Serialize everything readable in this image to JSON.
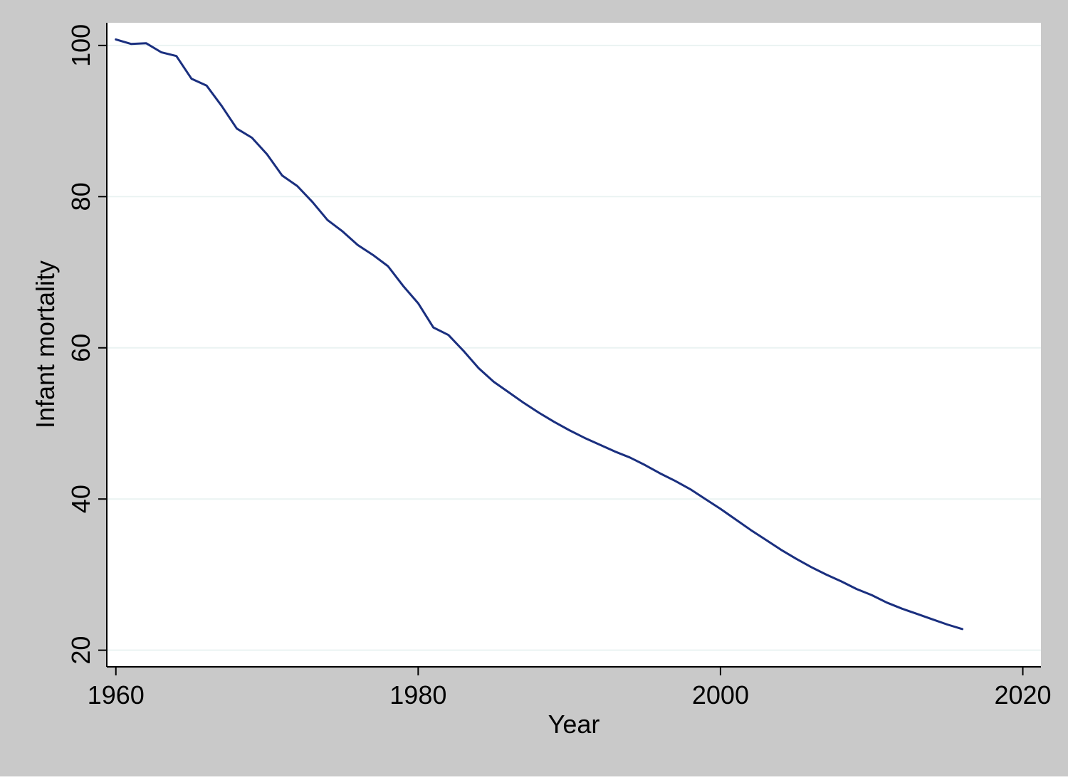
{
  "chart_data": {
    "type": "line",
    "title": "",
    "xlabel": "Year",
    "ylabel": "Infant mortality",
    "xlim": [
      1959.4,
      2021.2
    ],
    "ylim": [
      17.8,
      103.0
    ],
    "x_ticks": [
      1960,
      1980,
      2000,
      2020
    ],
    "y_ticks": [
      20,
      40,
      60,
      80,
      100
    ],
    "x_tick_labels": [
      "1960",
      "1980",
      "2000",
      "2020"
    ],
    "y_tick_labels": [
      "20",
      "40",
      "60",
      "80",
      "100"
    ],
    "grid": true,
    "legend": "none",
    "series": [
      {
        "x": [
          1960,
          1961,
          1962,
          1963,
          1964,
          1965,
          1966,
          1967,
          1968,
          1969,
          1970,
          1971,
          1972,
          1973,
          1974,
          1975,
          1976,
          1977,
          1978,
          1979,
          1980,
          1981,
          1982,
          1983,
          1984,
          1985,
          1986,
          1987,
          1988,
          1989,
          1990,
          1991,
          1992,
          1993,
          1994,
          1995,
          1996,
          1997,
          1998,
          1999,
          2000,
          2001,
          2002,
          2003,
          2004,
          2005,
          2006,
          2007,
          2008,
          2009,
          2010,
          2011,
          2012,
          2013,
          2014,
          2015,
          2016
        ],
        "values": [
          100.8,
          100.2,
          100.3,
          99.1,
          98.6,
          95.6,
          94.7,
          92.0,
          89.0,
          87.8,
          85.6,
          82.8,
          81.4,
          79.3,
          76.9,
          75.4,
          73.6,
          72.3,
          70.8,
          68.2,
          65.9,
          62.7,
          61.7,
          59.6,
          57.3,
          55.5,
          54.1,
          52.7,
          51.4,
          50.2,
          49.1,
          48.1,
          47.2,
          46.3,
          45.5,
          44.5,
          43.4,
          42.4,
          41.3,
          40.0,
          38.7,
          37.3,
          35.9,
          34.6,
          33.3,
          32.1,
          31.0,
          30.0,
          29.1,
          28.1,
          27.3,
          26.3,
          25.5,
          24.8,
          24.1,
          23.4,
          22.8
        ],
        "color": "#1a2f7f"
      }
    ],
    "colors": {
      "outer_background": "#c9c9c9",
      "plot_background": "#ffffff",
      "gridline": "#eaf3f2",
      "axis": "#000000",
      "line": "#1a2f7f"
    }
  }
}
